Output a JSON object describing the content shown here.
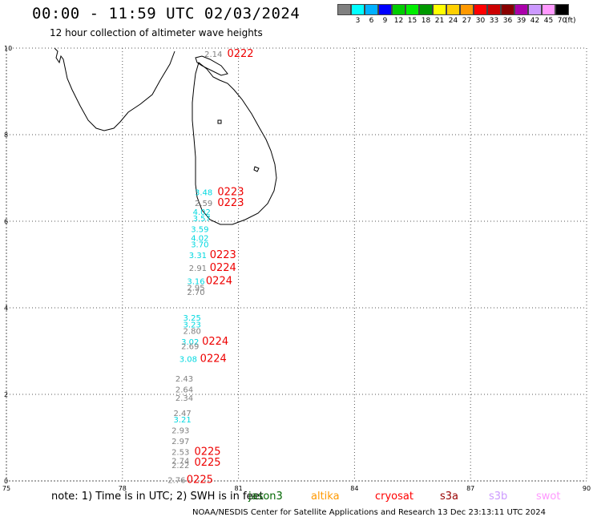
{
  "header": {
    "title": "00:00 - 11:59 UTC 02/03/2024",
    "subtitle": "12 hour collection of altimeter wave heights"
  },
  "legend": {
    "colors": [
      "#808080",
      "#00ffff",
      "#00b0ff",
      "#0000ff",
      "#00cc00",
      "#00ee00",
      "#009900",
      "#ffff00",
      "#ffd000",
      "#ff9900",
      "#ff0000",
      "#cc0000",
      "#880000",
      "#aa00aa",
      "#cc99ff",
      "#ff99ff",
      "#000000"
    ],
    "labels": [
      "3",
      "6",
      "9",
      "12",
      "15",
      "18",
      "21",
      "24",
      "27",
      "30",
      "33",
      "36",
      "39",
      "42",
      "45",
      "70"
    ],
    "unit": "(ft)"
  },
  "map": {
    "lon_ticks": [
      "75",
      "78",
      "81",
      "84",
      "87",
      "90"
    ],
    "lat_ticks": [
      "0",
      "2",
      "4",
      "6",
      "8",
      "10"
    ],
    "lon_range": [
      75,
      90
    ],
    "lat_range": [
      0,
      10
    ],
    "observations": [
      {
        "lon": 80.35,
        "lat": 9.8,
        "value": "2.14",
        "color": "#808080"
      },
      {
        "lon": 80.1,
        "lat": 6.6,
        "value": "3.48",
        "color": "#00d8e0"
      },
      {
        "lon": 80.1,
        "lat": 6.35,
        "value": "2.59",
        "color": "#808080"
      },
      {
        "lon": 80.05,
        "lat": 6.15,
        "value": "4.02",
        "color": "#00d8e0"
      },
      {
        "lon": 80.05,
        "lat": 6.0,
        "value": "3.57",
        "color": "#00d8e0"
      },
      {
        "lon": 80.0,
        "lat": 5.75,
        "value": "3.59",
        "color": "#00d8e0"
      },
      {
        "lon": 80.0,
        "lat": 5.55,
        "value": "4.02",
        "color": "#00d8e0"
      },
      {
        "lon": 80.0,
        "lat": 5.4,
        "value": "3.70",
        "color": "#00d8e0"
      },
      {
        "lon": 79.95,
        "lat": 5.15,
        "value": "3.31",
        "color": "#00d8e0"
      },
      {
        "lon": 79.95,
        "lat": 4.85,
        "value": "2.91",
        "color": "#808080"
      },
      {
        "lon": 79.9,
        "lat": 4.55,
        "value": "3.16",
        "color": "#00d8e0"
      },
      {
        "lon": 79.9,
        "lat": 4.4,
        "value": "2.95",
        "color": "#808080"
      },
      {
        "lon": 79.9,
        "lat": 4.3,
        "value": "2.70",
        "color": "#808080"
      },
      {
        "lon": 79.8,
        "lat": 3.7,
        "value": "3.25",
        "color": "#00d8e0"
      },
      {
        "lon": 79.8,
        "lat": 3.55,
        "value": "3.23",
        "color": "#00d8e0"
      },
      {
        "lon": 79.8,
        "lat": 3.4,
        "value": "2.80",
        "color": "#808080"
      },
      {
        "lon": 79.75,
        "lat": 3.15,
        "value": "3.02",
        "color": "#00d8e0"
      },
      {
        "lon": 79.75,
        "lat": 3.05,
        "value": "2.69",
        "color": "#808080"
      },
      {
        "lon": 79.7,
        "lat": 2.75,
        "value": "3.08",
        "color": "#00d8e0"
      },
      {
        "lon": 79.6,
        "lat": 2.3,
        "value": "2.43",
        "color": "#808080"
      },
      {
        "lon": 79.6,
        "lat": 2.05,
        "value": "2.64",
        "color": "#808080"
      },
      {
        "lon": 79.6,
        "lat": 1.85,
        "value": "2.34",
        "color": "#808080"
      },
      {
        "lon": 79.55,
        "lat": 1.5,
        "value": "2.47",
        "color": "#808080"
      },
      {
        "lon": 79.55,
        "lat": 1.35,
        "value": "3.21",
        "color": "#00d8e0"
      },
      {
        "lon": 79.5,
        "lat": 1.1,
        "value": "2.93",
        "color": "#808080"
      },
      {
        "lon": 79.5,
        "lat": 0.85,
        "value": "2.97",
        "color": "#808080"
      },
      {
        "lon": 79.5,
        "lat": 0.6,
        "value": "2.53",
        "color": "#808080"
      },
      {
        "lon": 79.5,
        "lat": 0.4,
        "value": "2.74",
        "color": "#808080"
      },
      {
        "lon": 79.5,
        "lat": 0.3,
        "value": "2.22",
        "color": "#808080"
      },
      {
        "lon": 79.4,
        "lat": -0.05,
        "value": "2.76",
        "color": "#808080"
      }
    ],
    "pass_times": [
      {
        "lon": 81.05,
        "lat": 9.8,
        "time": "0222"
      },
      {
        "lon": 80.8,
        "lat": 6.6,
        "time": "0223"
      },
      {
        "lon": 80.8,
        "lat": 6.35,
        "time": "0223"
      },
      {
        "lon": 80.6,
        "lat": 5.15,
        "time": "0223"
      },
      {
        "lon": 80.6,
        "lat": 4.85,
        "time": "0224"
      },
      {
        "lon": 80.5,
        "lat": 4.55,
        "time": "0224"
      },
      {
        "lon": 80.4,
        "lat": 3.15,
        "time": "0224"
      },
      {
        "lon": 80.35,
        "lat": 2.75,
        "time": "0224"
      },
      {
        "lon": 80.2,
        "lat": 0.6,
        "time": "0225"
      },
      {
        "lon": 80.2,
        "lat": 0.35,
        "time": "0225"
      },
      {
        "lon": 80.0,
        "lat": -0.05,
        "time": "0225"
      }
    ]
  },
  "footer": {
    "note": "note: 1) Time is in UTC; 2) SWH is in feet",
    "satellites": [
      {
        "name": "jason3",
        "color": "#006600"
      },
      {
        "name": "altika",
        "color": "#ff9900"
      },
      {
        "name": "cryosat",
        "color": "#ff0000"
      },
      {
        "name": "s3a",
        "color": "#990000"
      },
      {
        "name": "s3b",
        "color": "#cc99ff"
      },
      {
        "name": "swot",
        "color": "#ff99ff"
      }
    ],
    "credit": "NOAA/NESDIS Center for Satellite Applications and Research   13 Dec 23:13:11 UTC 2024"
  }
}
